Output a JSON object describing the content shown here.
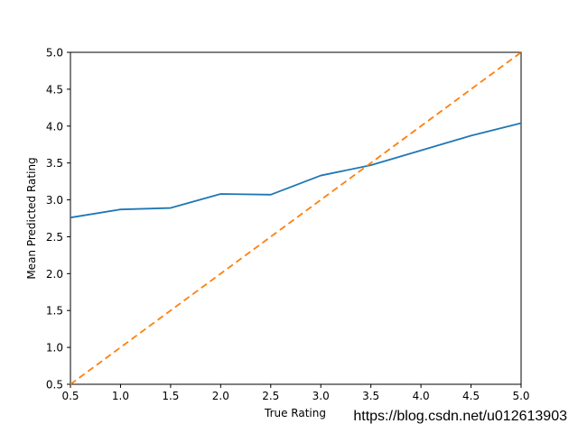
{
  "chart_data": {
    "type": "line",
    "title": "",
    "xlabel": "True Rating",
    "ylabel": "Mean Predicted Rating",
    "xlim": [
      0.5,
      5.0
    ],
    "ylim": [
      0.5,
      5.0
    ],
    "grid": false,
    "legend": "none",
    "x_ticks": [
      0.5,
      1.0,
      1.5,
      2.0,
      2.5,
      3.0,
      3.5,
      4.0,
      4.5,
      5.0
    ],
    "y_ticks": [
      0.5,
      1.0,
      1.5,
      2.0,
      2.5,
      3.0,
      3.5,
      4.0,
      4.5,
      5.0
    ],
    "tick_label_format": "one_decimal",
    "series": [
      {
        "name": "mean_predicted_rating",
        "style": "solid",
        "color": "#1f77b4",
        "x": [
          0.5,
          1.0,
          1.5,
          2.0,
          2.5,
          3.0,
          3.5,
          4.0,
          4.5,
          5.0
        ],
        "y": [
          2.76,
          2.87,
          2.89,
          3.08,
          3.07,
          3.33,
          3.47,
          3.67,
          3.87,
          4.04
        ]
      },
      {
        "name": "identity_reference",
        "style": "dashed",
        "color": "#ff7f0e",
        "x": [
          0.5,
          5.0
        ],
        "y": [
          0.5,
          5.0
        ]
      }
    ],
    "spine_color": "#000000"
  },
  "watermark": {
    "text": "https://blog.csdn.net/u012613903",
    "color": "#e8e8e8"
  }
}
